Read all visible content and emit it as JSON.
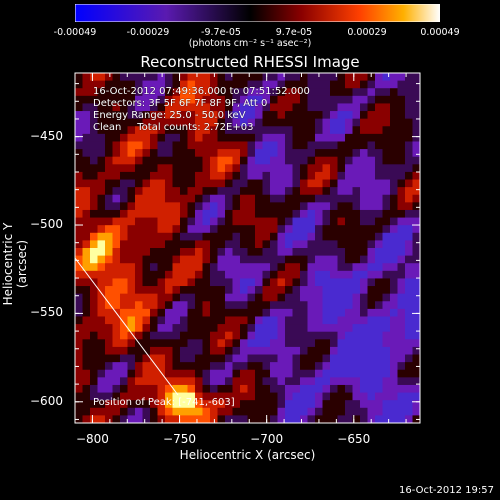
{
  "chart_data": {
    "type": "heatmap",
    "title": "Reconstructed RHESSI Image",
    "xlabel": "Heliocentric X (arcsec)",
    "ylabel": "Heliocentric Y (arcsec)",
    "xlim": [
      -810,
      -612
    ],
    "ylim": [
      -612,
      -414
    ],
    "x_ticks": [
      -800,
      -750,
      -700,
      -650
    ],
    "y_ticks": [
      -450,
      -500,
      -550,
      -600
    ],
    "colorbar": {
      "range": [
        -0.00049,
        0.00049
      ],
      "ticks": [
        "-0.00049",
        "-0.00029",
        "-9.7e-05",
        "9.7e-05",
        "0.00029",
        "0.00049"
      ],
      "unit_label": "(photons cm⁻² s⁻¹ asec⁻²)"
    },
    "info": [
      "16-Oct-2012 07:49:36.000 to 07:51:52.000",
      "Detectors: 3F 5F 6F 7F 8F 9F, Att 0",
      "Energy Range: 25.0 - 50.0 keV",
      "Clean     Total counts: 2.72E+03"
    ],
    "peak": {
      "label": "Position of Peak: [-741,-603]",
      "x": -741,
      "y": -603
    },
    "colors": {
      "negative": "#2020ff",
      "zero": "#000000",
      "positive_mid": "#ff3000",
      "positive_high": "#ffff80"
    }
  },
  "footer": {
    "timestamp": "16-Oct-2012 19:57"
  }
}
